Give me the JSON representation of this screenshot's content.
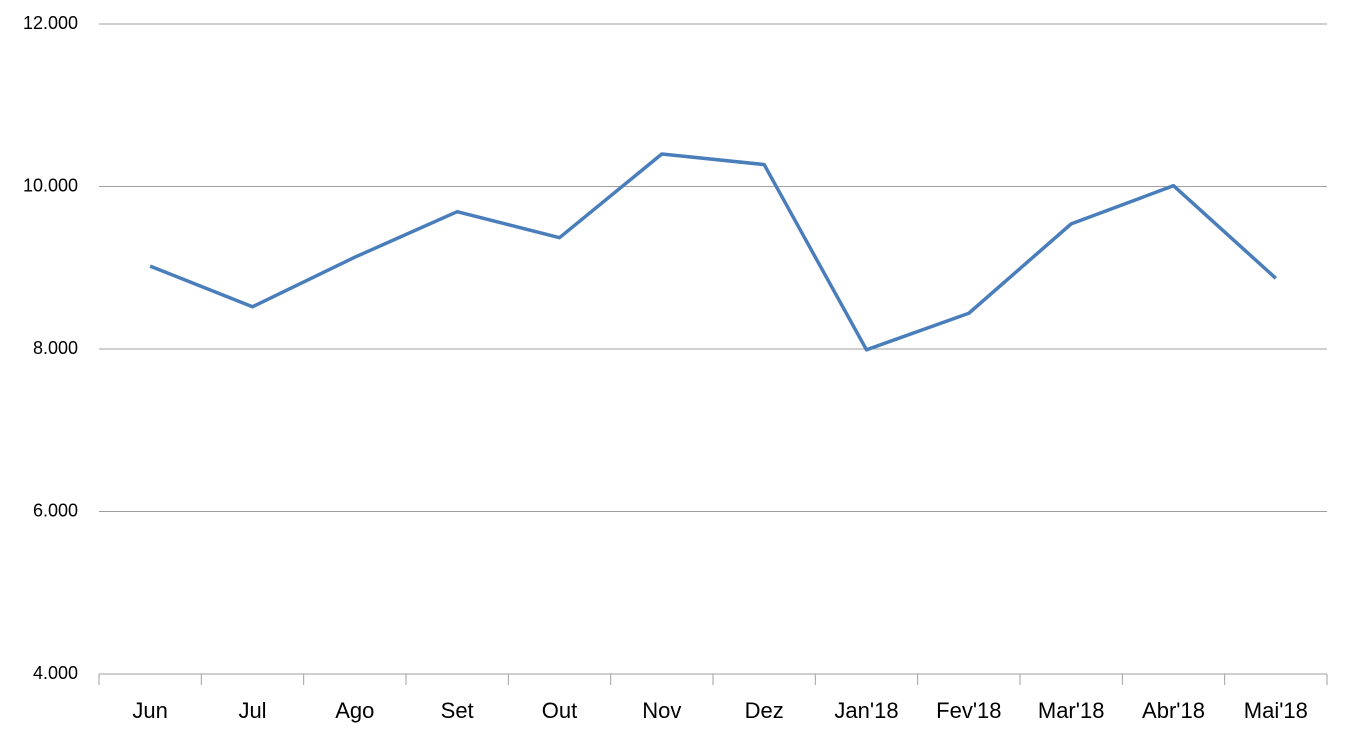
{
  "chart_data": {
    "type": "line",
    "categories": [
      "Jun",
      "Jul",
      "Ago",
      "Set",
      "Out",
      "Nov",
      "Dez",
      "Jan'18",
      "Fev'18",
      "Mar'18",
      "Abr'18",
      "Mai'18"
    ],
    "series": [
      {
        "color": "#4a7ebb",
        "values": [
          9020,
          8520,
          9130,
          9690,
          9370,
          10400,
          10270,
          7990,
          8440,
          9540,
          10010,
          8870
        ]
      }
    ],
    "ylim": [
      4000,
      12000
    ],
    "yticks": [
      {
        "value": 4000,
        "label": "4.000"
      },
      {
        "value": 6000,
        "label": "6.000"
      },
      {
        "value": 8000,
        "label": "8.000"
      },
      {
        "value": 10000,
        "label": "10.000"
      },
      {
        "value": 12000,
        "label": "12.000"
      }
    ],
    "grid": true
  }
}
